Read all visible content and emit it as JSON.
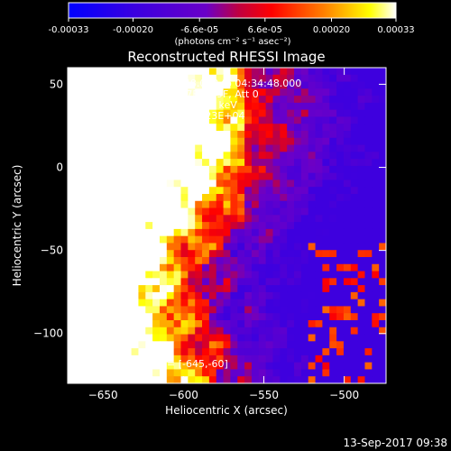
{
  "chart_data": {
    "type": "heatmap",
    "title": "Reconstructed RHESSI Image",
    "xlabel": "Heliocentric X (arcsec)",
    "ylabel": "Heliocentric Y (arcsec)",
    "xlim": [
      -672,
      -474
    ],
    "ylim": [
      -130,
      60
    ],
    "xticks": [
      -650,
      -600,
      -550,
      -500
    ],
    "yticks": [
      50,
      0,
      -50,
      -100
    ],
    "colorbar": {
      "min": -0.00033,
      "max": 0.00033,
      "ticks": [
        "-0.00033",
        "-0.00020",
        "-6.6e-05",
        "6.6e-05",
        "0.00020",
        "0.00033"
      ],
      "unit_label": "(photons cm⁻² s⁻¹ asec⁻²)",
      "colors": [
        "#0000ff",
        "#6a00c8",
        "#ff0000",
        "#ff8000",
        "#ffff00",
        "#ffffff"
      ]
    },
    "annotations": [
      "24-Mar-2015 04:24:48.000 to 04:34:48.000",
      "Detectors: 3F 5F 6F 7F 8F 9F, Att 0",
      "Energy Range: 12.0 - 25.0 keV",
      "Clean     Total counts: 1.23E+04"
    ],
    "peak_label": "Position of Peak = [-645,-60]",
    "peak": [
      -645,
      -60
    ],
    "timestamp": "13-Sep-2017 09:38"
  }
}
